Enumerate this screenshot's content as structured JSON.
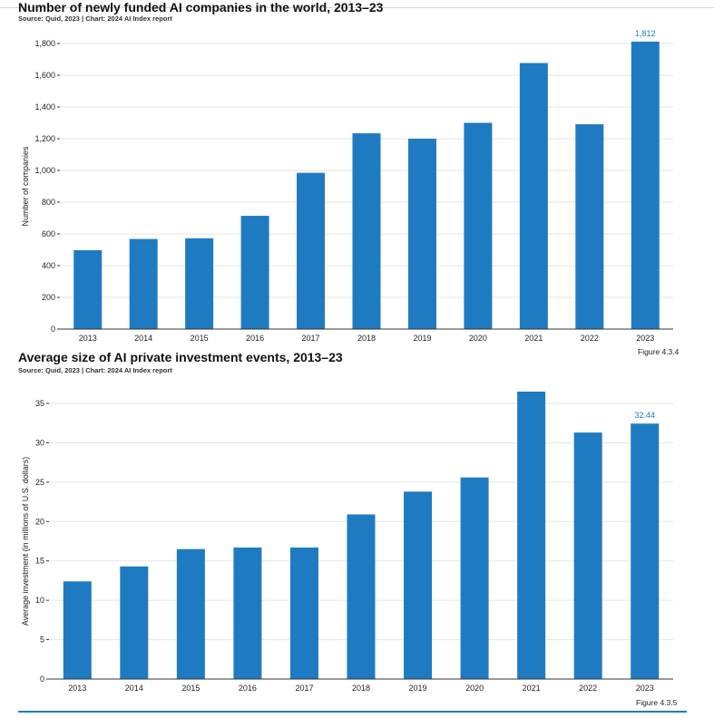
{
  "charts": [
    {
      "title": "Number of newly funded AI companies in the world, 2013–23",
      "source": "Source: Quid, 2023 | Chart: 2024 AI Index report",
      "figure": "Figure 4.3.4"
    },
    {
      "title": "Average size of AI private investment events, 2013–23",
      "source": "Source: Quid, 2023 | Chart: 2024 AI Index report",
      "figure": "Figure 4.3.5"
    }
  ],
  "colors": {
    "bar": "#1f7bc1",
    "label": "#1f7bc1",
    "grid": "#e6e6e6"
  },
  "chart_data": [
    {
      "type": "bar",
      "title": "Number of newly funded AI companies in the world, 2013–23",
      "xlabel": "",
      "ylabel": "Number of companies",
      "categories": [
        "2013",
        "2014",
        "2015",
        "2016",
        "2017",
        "2018",
        "2019",
        "2020",
        "2021",
        "2022",
        "2023"
      ],
      "values": [
        497,
        568,
        572,
        714,
        985,
        1234,
        1200,
        1300,
        1677,
        1291,
        1812
      ],
      "data_labels": {
        "2023": "1,812"
      },
      "ylim": [
        0,
        1800
      ],
      "yticks": [
        0,
        200,
        400,
        600,
        800,
        1000,
        1200,
        1400,
        1600,
        1800
      ],
      "ytick_labels": [
        "0",
        "200",
        "400",
        "600",
        "800",
        "1,000",
        "1,200",
        "1,400",
        "1,600",
        "1,800"
      ],
      "grid": true
    },
    {
      "type": "bar",
      "title": "Average size of AI private investment events, 2013–23",
      "xlabel": "",
      "ylabel": "Average investment (in millions of U.S. dollars)",
      "categories": [
        "2013",
        "2014",
        "2015",
        "2016",
        "2017",
        "2018",
        "2019",
        "2020",
        "2021",
        "2022",
        "2023"
      ],
      "values": [
        12.4,
        14.3,
        16.5,
        16.7,
        16.7,
        20.9,
        23.8,
        25.6,
        36.5,
        31.3,
        32.44
      ],
      "data_labels": {
        "2023": "32.44"
      },
      "ylim": [
        0,
        35
      ],
      "yticks": [
        0,
        5,
        10,
        15,
        20,
        25,
        30,
        35
      ],
      "ytick_labels": [
        "0",
        "5",
        "10",
        "15",
        "20",
        "25",
        "30",
        "35"
      ],
      "grid": true
    }
  ]
}
